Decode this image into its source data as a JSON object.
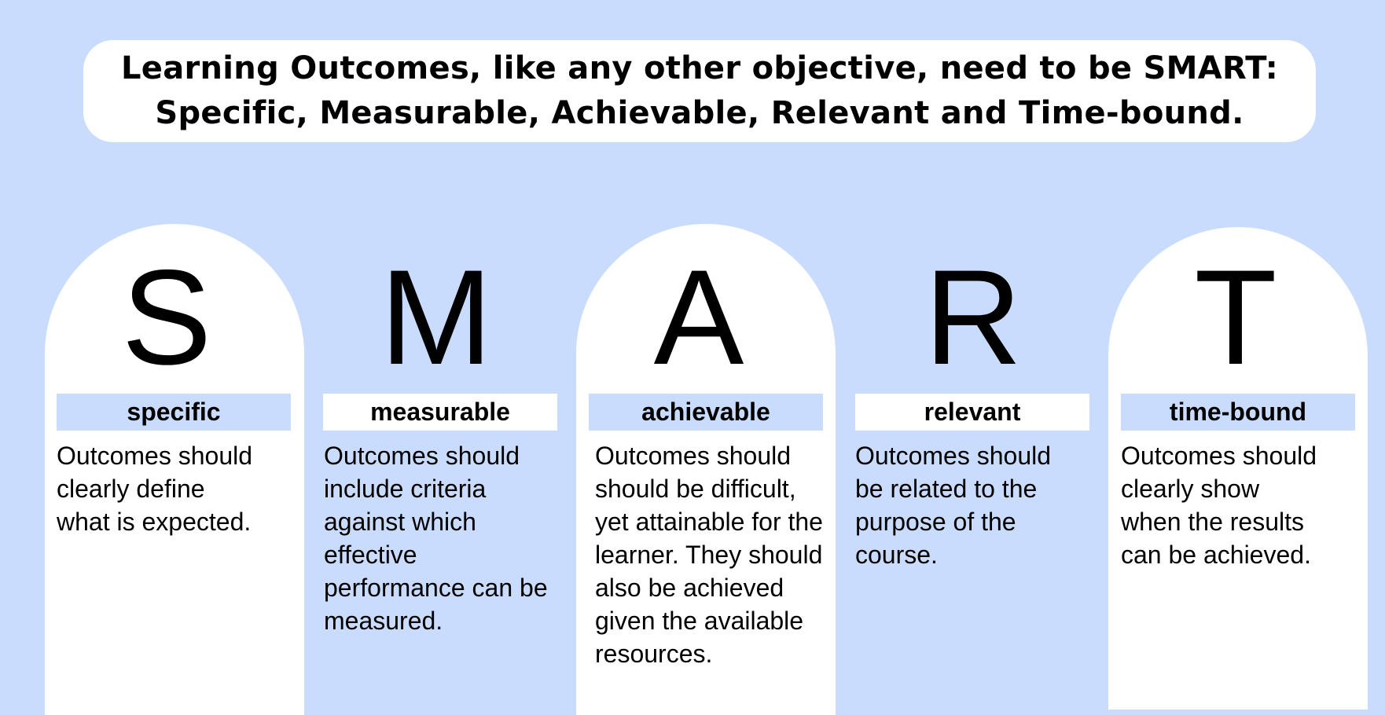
{
  "banner": {
    "line1": "Learning Outcomes, like any other objective, need to be SMART:",
    "line2": "Specific, Measurable, Achievable, Relevant and Time-bound."
  },
  "items": [
    {
      "letter": "S",
      "label": "specific",
      "description": "Outcomes should clearly define what is expected."
    },
    {
      "letter": "M",
      "label": "measurable",
      "description": "Outcomes should include criteria against which effective performance can be measured."
    },
    {
      "letter": "A",
      "label": "achievable",
      "description": "Outcomes should should be difficult, yet attainable for the learner. They should also be achieved given the available resources."
    },
    {
      "letter": "R",
      "label": "relevant",
      "description": "Outcomes should be related to the purpose of the course."
    },
    {
      "letter": "T",
      "label": "time-bound",
      "description": "Outcomes should clearly show when the results can be achieved."
    }
  ],
  "colors": {
    "background": "#c9dcfd",
    "panel": "#ffffff",
    "text": "#000000"
  }
}
